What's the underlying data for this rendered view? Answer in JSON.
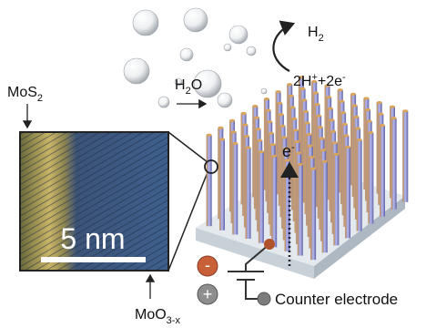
{
  "labels": {
    "mos2": {
      "base": "MoS",
      "sub": "2"
    },
    "moo3x": {
      "base": "MoO",
      "sub": "3-x"
    },
    "h2o": {
      "base": "H",
      "sub": "2",
      "rest": "O"
    },
    "h2": {
      "base": "H",
      "sub": "2"
    },
    "reaction": {
      "a": "2H",
      "sup_a": "+",
      "b": "+2e",
      "sup_b": "-"
    },
    "electron": {
      "base": "e",
      "sup": "-"
    },
    "scale_bar": "5 nm",
    "minus": "-",
    "plus": "+",
    "counter_electrode": "Counter electrode"
  }
}
